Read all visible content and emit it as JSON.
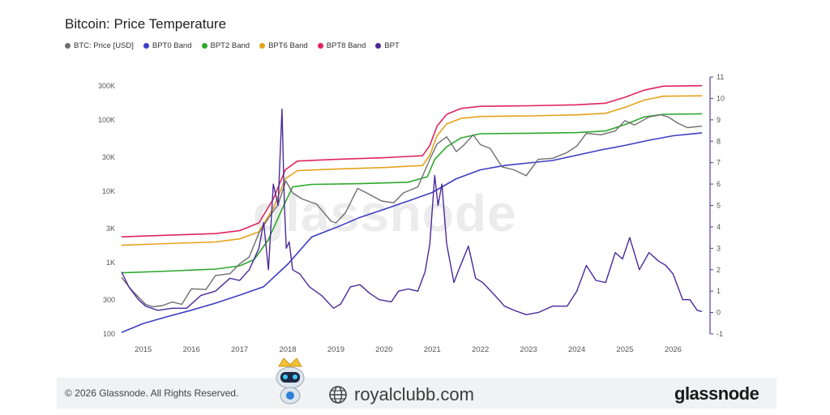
{
  "chart_data": {
    "type": "line",
    "title": "Bitcoin: Price Temperature",
    "x_ticks": [
      "2015",
      "2016",
      "2017",
      "2018",
      "2019",
      "2020",
      "2021",
      "2022",
      "2023",
      "2024",
      "2025",
      "2026"
    ],
    "xlim": [
      2014.55,
      2026.7
    ],
    "y_left": {
      "scale": "log",
      "ticks": [
        "100",
        "300",
        "1K",
        "3K",
        "10K",
        "30K",
        "100K",
        "300K"
      ],
      "tick_values": [
        100,
        300,
        1000,
        3000,
        10000,
        30000,
        100000,
        300000
      ],
      "range": [
        100,
        400000
      ]
    },
    "y_right": {
      "scale": "linear",
      "ticks": [
        "-1",
        "0",
        "1",
        "2",
        "3",
        "4",
        "5",
        "6",
        "7",
        "8",
        "9",
        "10",
        "11"
      ],
      "range": [
        -1,
        11
      ]
    },
    "legend_position": "top-left",
    "grid": false,
    "series": [
      {
        "name": "BTC: Price [USD]",
        "color": "#6e6e6e",
        "axis": "left",
        "x": [
          2014.55,
          2014.75,
          2014.9,
          2015.05,
          2015.2,
          2015.4,
          2015.6,
          2015.8,
          2016.0,
          2016.3,
          2016.5,
          2016.8,
          2017.0,
          2017.2,
          2017.4,
          2017.6,
          2017.8,
          2017.96,
          2018.1,
          2018.3,
          2018.6,
          2018.9,
          2019.0,
          2019.2,
          2019.45,
          2019.7,
          2019.95,
          2020.2,
          2020.4,
          2020.7,
          2020.95,
          2021.1,
          2021.3,
          2021.5,
          2021.65,
          2021.85,
          2022.0,
          2022.2,
          2022.45,
          2022.7,
          2022.95,
          2023.2,
          2023.5,
          2023.8,
          2024.0,
          2024.2,
          2024.5,
          2024.8,
          2025.0,
          2025.2,
          2025.5,
          2025.75,
          2025.9,
          2026.1,
          2026.3,
          2026.6
        ],
        "y": [
          620,
          420,
          330,
          260,
          240,
          250,
          280,
          260,
          430,
          420,
          660,
          700,
          960,
          1200,
          2600,
          4200,
          6500,
          14000,
          9500,
          7800,
          6600,
          3800,
          3600,
          5000,
          11000,
          9000,
          7300,
          6900,
          9500,
          11500,
          28000,
          46000,
          58000,
          36000,
          44000,
          62000,
          45000,
          40000,
          22000,
          20000,
          16500,
          28000,
          29000,
          35000,
          43000,
          65000,
          62000,
          70000,
          98000,
          85000,
          110000,
          118000,
          110000,
          90000,
          78000,
          82000
        ]
      },
      {
        "name": "BPT0 Band",
        "color": "#3d3dc4",
        "axis": "left",
        "x": [
          2014.55,
          2015.0,
          2015.5,
          2016.0,
          2016.5,
          2017.0,
          2017.5,
          2018.0,
          2018.5,
          2019.0,
          2019.5,
          2020.0,
          2020.5,
          2021.0,
          2021.5,
          2022.0,
          2022.5,
          2023.0,
          2023.5,
          2024.0,
          2024.5,
          2025.0,
          2025.5,
          2026.0,
          2026.6
        ],
        "y": [
          105,
          140,
          175,
          215,
          270,
          350,
          460,
          950,
          2300,
          3100,
          4300,
          5600,
          7300,
          9600,
          15000,
          20000,
          23000,
          25000,
          27000,
          32000,
          38000,
          44000,
          52000,
          60000,
          66000
        ]
      },
      {
        "name": "BPT2 Band",
        "color": "#2ea82e",
        "axis": "left",
        "x": [
          2014.55,
          2015.5,
          2016.5,
          2017.0,
          2017.3,
          2017.6,
          2017.9,
          2018.1,
          2018.5,
          2019.5,
          2020.5,
          2020.9,
          2021.05,
          2021.3,
          2021.6,
          2022.0,
          2023.0,
          2024.0,
          2024.6,
          2025.0,
          2025.4,
          2025.8,
          2026.6
        ],
        "y": [
          720,
          760,
          810,
          900,
          1100,
          2100,
          6000,
          11500,
          12500,
          12800,
          13400,
          16000,
          28000,
          42000,
          56000,
          64000,
          65000,
          66500,
          70000,
          86000,
          110000,
          120000,
          122000
        ]
      },
      {
        "name": "BPT6 Band",
        "color": "#e6a21c",
        "axis": "left",
        "x": [
          2014.55,
          2015.5,
          2016.5,
          2017.0,
          2017.4,
          2017.7,
          2017.95,
          2018.2,
          2019.0,
          2020.0,
          2020.8,
          2020.95,
          2021.1,
          2021.3,
          2021.6,
          2022.0,
          2023.0,
          2024.0,
          2024.6,
          2025.0,
          2025.4,
          2025.8,
          2026.6
        ],
        "y": [
          1750,
          1850,
          1950,
          2150,
          2700,
          5800,
          15000,
          19500,
          20500,
          21500,
          23000,
          32000,
          60000,
          88000,
          105000,
          112000,
          114000,
          118000,
          124000,
          150000,
          190000,
          215000,
          218000
        ]
      },
      {
        "name": "BPT8 Band",
        "color": "#e0245e",
        "axis": "left",
        "x": [
          2014.55,
          2015.5,
          2016.5,
          2017.0,
          2017.4,
          2017.7,
          2017.95,
          2018.2,
          2019.0,
          2020.0,
          2020.8,
          2020.95,
          2021.1,
          2021.3,
          2021.6,
          2022.0,
          2023.0,
          2024.0,
          2024.6,
          2025.0,
          2025.4,
          2025.8,
          2026.6
        ],
        "y": [
          2300,
          2420,
          2550,
          2800,
          3600,
          7800,
          20000,
          26500,
          28000,
          29500,
          31500,
          44000,
          82000,
          120000,
          145000,
          155000,
          158000,
          163000,
          172000,
          208000,
          262000,
          298000,
          302000
        ]
      },
      {
        "name": "BPT",
        "color": "#4a2a9a",
        "axis": "right",
        "x": [
          2014.55,
          2014.7,
          2014.9,
          2015.05,
          2015.3,
          2015.6,
          2015.9,
          2016.2,
          2016.5,
          2016.8,
          2017.0,
          2017.2,
          2017.4,
          2017.5,
          2017.6,
          2017.7,
          2017.8,
          2017.88,
          2017.93,
          2017.97,
          2018.03,
          2018.1,
          2018.25,
          2018.45,
          2018.7,
          2018.95,
          2019.1,
          2019.3,
          2019.5,
          2019.7,
          2019.9,
          2020.15,
          2020.3,
          2020.5,
          2020.7,
          2020.85,
          2020.95,
          2021.05,
          2021.12,
          2021.2,
          2021.3,
          2021.45,
          2021.55,
          2021.75,
          2021.9,
          2022.05,
          2022.3,
          2022.5,
          2022.7,
          2022.95,
          2023.2,
          2023.5,
          2023.8,
          2024.0,
          2024.2,
          2024.4,
          2024.6,
          2024.8,
          2024.95,
          2025.1,
          2025.3,
          2025.5,
          2025.7,
          2025.85,
          2026.0,
          2026.2,
          2026.35,
          2026.5,
          2026.6
        ],
        "y": [
          1.9,
          1.2,
          0.6,
          0.3,
          0.1,
          0.2,
          0.2,
          0.8,
          1.0,
          1.6,
          1.5,
          2.0,
          3.0,
          4.2,
          2.0,
          6.0,
          5.0,
          9.5,
          5.0,
          3.0,
          3.3,
          2.0,
          1.8,
          1.2,
          0.8,
          0.2,
          0.4,
          1.2,
          1.3,
          0.9,
          0.6,
          0.5,
          1.0,
          1.1,
          1.0,
          1.9,
          3.2,
          6.4,
          5.0,
          6.0,
          3.2,
          1.4,
          2.0,
          3.1,
          1.6,
          1.4,
          0.8,
          0.3,
          0.1,
          -0.1,
          0.0,
          0.3,
          0.3,
          1.0,
          2.2,
          1.5,
          1.4,
          2.8,
          2.5,
          3.5,
          2.0,
          2.8,
          2.4,
          2.2,
          1.8,
          0.6,
          0.6,
          0.1,
          0.05
        ]
      }
    ]
  },
  "footer": {
    "copyright": "© 2026 Glassnode. All Rights Reserved.",
    "brand": "glassnode",
    "site": "royalclubb.com",
    "watermark": "glassnode"
  },
  "icons": {
    "site": "globe-icon",
    "mascot": "robot-mascot-icon"
  }
}
